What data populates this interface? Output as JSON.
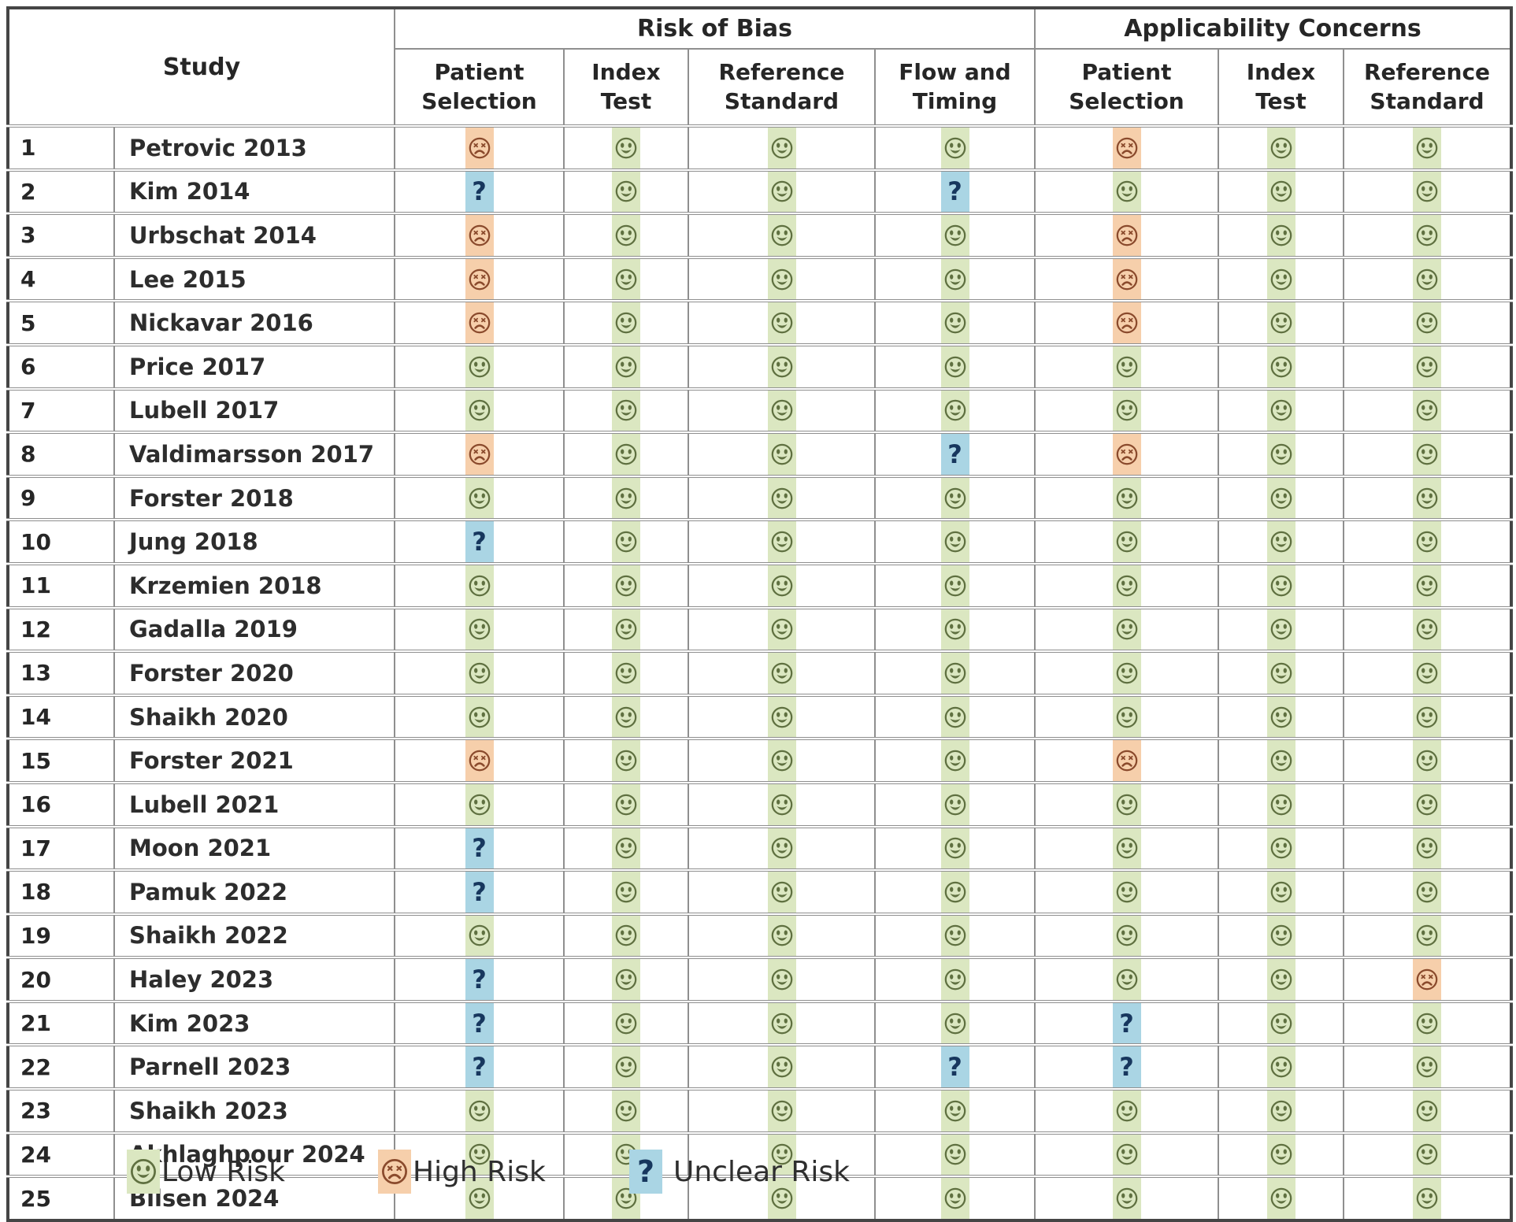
{
  "header": {
    "study_label": "Study",
    "group1": "Risk of Bias",
    "group2": "Applicability Concerns",
    "rob_columns": [
      "Patient Selection",
      "Index Test",
      "Reference Standard",
      "Flow and Timing"
    ],
    "ac_columns": [
      "Patient Selection",
      "Index Test",
      "Reference Standard"
    ]
  },
  "legend": {
    "items": [
      {
        "key": "low",
        "label": "Low Risk"
      },
      {
        "key": "high",
        "label": "High Risk"
      },
      {
        "key": "unclear",
        "label": "Unclear Risk"
      }
    ],
    "unclear_symbol": "?"
  },
  "colors": {
    "low_bg": "#dbe7c1",
    "low_face": "#5f7040",
    "high_bg": "#f6cfab",
    "high_face": "#8a4a2c",
    "unclear_bg": "#aad5e4",
    "unclear_glyph": "#17375e",
    "grid": "#8f8f8f",
    "outer_border": "#454545",
    "text": "#262626"
  },
  "rows": [
    {
      "num": "1",
      "study": "Petrovic 2013",
      "ratings": [
        "high",
        "low",
        "low",
        "low",
        "high",
        "low",
        "low"
      ]
    },
    {
      "num": "2",
      "study": "Kim 2014",
      "ratings": [
        "unclear",
        "low",
        "low",
        "unclear",
        "low",
        "low",
        "low"
      ]
    },
    {
      "num": "3",
      "study": "Urbschat 2014",
      "ratings": [
        "high",
        "low",
        "low",
        "low",
        "high",
        "low",
        "low"
      ]
    },
    {
      "num": "4",
      "study": "Lee 2015",
      "ratings": [
        "high",
        "low",
        "low",
        "low",
        "high",
        "low",
        "low"
      ]
    },
    {
      "num": "5",
      "study": "Nickavar 2016",
      "ratings": [
        "high",
        "low",
        "low",
        "low",
        "high",
        "low",
        "low"
      ]
    },
    {
      "num": "6",
      "study": "Price 2017",
      "ratings": [
        "low",
        "low",
        "low",
        "low",
        "low",
        "low",
        "low"
      ]
    },
    {
      "num": "7",
      "study": "Lubell 2017",
      "ratings": [
        "low",
        "low",
        "low",
        "low",
        "low",
        "low",
        "low"
      ]
    },
    {
      "num": "8",
      "study": "Valdimarsson 2017",
      "ratings": [
        "high",
        "low",
        "low",
        "unclear",
        "high",
        "low",
        "low"
      ]
    },
    {
      "num": "9",
      "study": "Forster 2018",
      "ratings": [
        "low",
        "low",
        "low",
        "low",
        "low",
        "low",
        "low"
      ]
    },
    {
      "num": "10",
      "study": "Jung 2018",
      "ratings": [
        "unclear",
        "low",
        "low",
        "low",
        "low",
        "low",
        "low"
      ]
    },
    {
      "num": "11",
      "study": "Krzemien 2018",
      "ratings": [
        "low",
        "low",
        "low",
        "low",
        "low",
        "low",
        "low"
      ]
    },
    {
      "num": "12",
      "study": "Gadalla 2019",
      "ratings": [
        "low",
        "low",
        "low",
        "low",
        "low",
        "low",
        "low"
      ]
    },
    {
      "num": "13",
      "study": "Forster 2020",
      "ratings": [
        "low",
        "low",
        "low",
        "low",
        "low",
        "low",
        "low"
      ]
    },
    {
      "num": "14",
      "study": "Shaikh 2020",
      "ratings": [
        "low",
        "low",
        "low",
        "low",
        "low",
        "low",
        "low"
      ]
    },
    {
      "num": "15",
      "study": "Forster 2021",
      "ratings": [
        "high",
        "low",
        "low",
        "low",
        "high",
        "low",
        "low"
      ]
    },
    {
      "num": "16",
      "study": "Lubell 2021",
      "ratings": [
        "low",
        "low",
        "low",
        "low",
        "low",
        "low",
        "low"
      ]
    },
    {
      "num": "17",
      "study": "Moon 2021",
      "ratings": [
        "unclear",
        "low",
        "low",
        "low",
        "low",
        "low",
        "low"
      ]
    },
    {
      "num": "18",
      "study": "Pamuk 2022",
      "ratings": [
        "unclear",
        "low",
        "low",
        "low",
        "low",
        "low",
        "low"
      ]
    },
    {
      "num": "19",
      "study": "Shaikh 2022",
      "ratings": [
        "low",
        "low",
        "low",
        "low",
        "low",
        "low",
        "low"
      ]
    },
    {
      "num": "20",
      "study": "Haley 2023",
      "ratings": [
        "unclear",
        "low",
        "low",
        "low",
        "low",
        "low",
        "high"
      ]
    },
    {
      "num": "21",
      "study": "Kim 2023",
      "ratings": [
        "unclear",
        "low",
        "low",
        "low",
        "unclear",
        "low",
        "low"
      ]
    },
    {
      "num": "22",
      "study": "Parnell 2023",
      "ratings": [
        "unclear",
        "low",
        "low",
        "unclear",
        "unclear",
        "low",
        "low"
      ]
    },
    {
      "num": "23",
      "study": "Shaikh 2023",
      "ratings": [
        "low",
        "low",
        "low",
        "low",
        "low",
        "low",
        "low"
      ]
    },
    {
      "num": "24",
      "study": "Akhlaghpour 2024",
      "ratings": [
        "low",
        "low",
        "low",
        "low",
        "low",
        "low",
        "low"
      ]
    },
    {
      "num": "25",
      "study": "Bilsen 2024",
      "ratings": [
        "low",
        "low",
        "low",
        "low",
        "low",
        "low",
        "low"
      ]
    }
  ]
}
